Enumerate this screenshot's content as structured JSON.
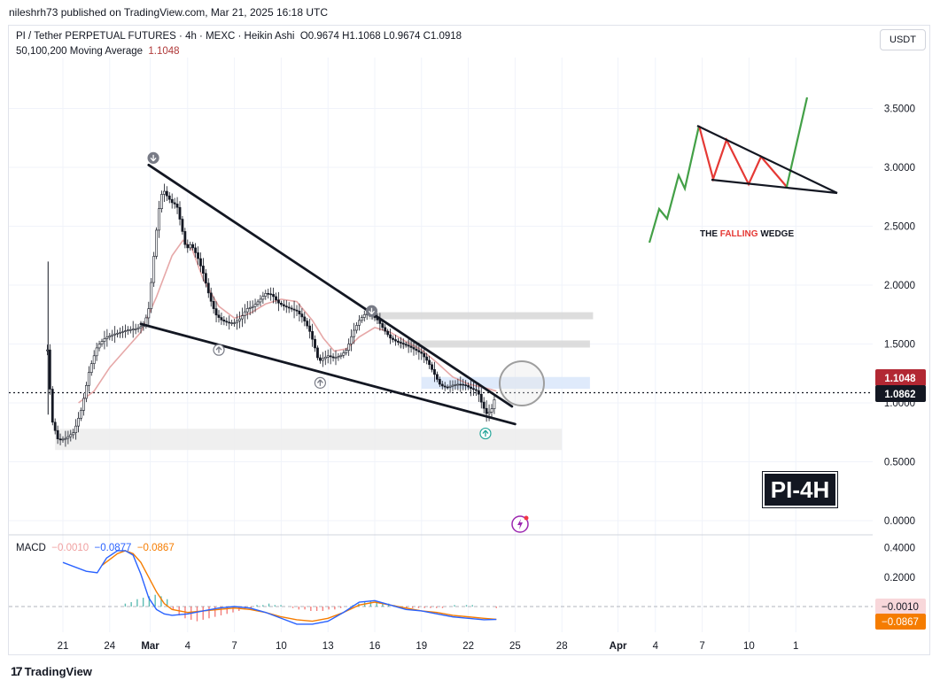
{
  "publisher": "nileshrh73 published on TradingView.com, Mar 21, 2025 16:18 UTC",
  "legend": {
    "symbol": "PI / Tether PERPETUAL FUTURES · 4h · MEXC · Heikin Ashi",
    "ohlc": "O0.9674  H1.1068  L0.9674  C1.0918",
    "ma_label": "50,100,200 Moving Average",
    "ma_value": "1.1048"
  },
  "macd_legend": {
    "label": "MACD",
    "hist": "−0.0010",
    "macd": "−0.0877",
    "signal": "−0.0867"
  },
  "currency": "USDT",
  "brand": "TradingView",
  "badge": "PI-4H",
  "inset_label": {
    "pre": "THE ",
    "hl": "FALLING",
    "post": " WEDGE"
  },
  "colors": {
    "up": "#131722",
    "ma": "#e6a8a8",
    "macd": "#2962ff",
    "signal": "#f57c00",
    "hist_up": "#26a69a",
    "hist_down": "#ef5350",
    "price_badge": "#131722",
    "ma_badge": "#b22833"
  },
  "chart_data": [
    {
      "type": "candlestick",
      "ohlc": "O0.9674 H1.1068 L0.9674 C1.0918",
      "x_ticks": [
        "21",
        "24",
        "Mar",
        "4",
        "7",
        "10",
        "13",
        "16",
        "19",
        "22",
        "25",
        "28",
        "Apr",
        "4",
        "7",
        "10",
        "1"
      ],
      "y_ticks": [
        "3.5000",
        "3.0000",
        "2.5000",
        "2.0000",
        "1.5000",
        "1.0000",
        "0.5000",
        "0.0000"
      ],
      "ylim": [
        0.0,
        4.0
      ],
      "current_price": "1.0862",
      "ma_value": "1.1048",
      "price_path": [
        [
          20.0,
          1.45
        ],
        [
          20.3,
          0.85
        ],
        [
          20.7,
          0.68
        ],
        [
          21.2,
          0.7
        ],
        [
          21.7,
          0.75
        ],
        [
          22.2,
          0.95
        ],
        [
          22.7,
          1.28
        ],
        [
          23.2,
          1.48
        ],
        [
          23.7,
          1.55
        ],
        [
          24.2,
          1.58
        ],
        [
          24.7,
          1.6
        ],
        [
          25.2,
          1.62
        ],
        [
          25.7,
          1.63
        ],
        [
          26.2,
          1.66
        ],
        [
          26.5,
          1.8
        ],
        [
          26.8,
          2.2
        ],
        [
          27.1,
          2.6
        ],
        [
          27.4,
          2.82
        ],
        [
          27.7,
          2.75
        ],
        [
          28.0,
          2.7
        ],
        [
          28.3,
          2.68
        ],
        [
          28.6,
          2.5
        ],
        [
          28.9,
          2.3
        ],
        [
          29.2,
          2.35
        ],
        [
          29.6,
          2.25
        ],
        [
          30.0,
          2.1
        ],
        [
          30.4,
          1.9
        ],
        [
          30.8,
          1.75
        ],
        [
          31.2,
          1.7
        ],
        [
          31.6,
          1.68
        ],
        [
          32.0,
          1.68
        ],
        [
          32.4,
          1.72
        ],
        [
          32.8,
          1.8
        ],
        [
          33.2,
          1.82
        ],
        [
          33.6,
          1.87
        ],
        [
          34.0,
          1.93
        ],
        [
          34.4,
          1.92
        ],
        [
          34.8,
          1.85
        ],
        [
          35.2,
          1.82
        ],
        [
          35.6,
          1.8
        ],
        [
          36.0,
          1.78
        ],
        [
          36.4,
          1.72
        ],
        [
          36.8,
          1.62
        ],
        [
          37.1,
          1.5
        ],
        [
          37.4,
          1.35
        ],
        [
          37.7,
          1.38
        ],
        [
          38.0,
          1.4
        ],
        [
          38.4,
          1.38
        ],
        [
          38.8,
          1.4
        ],
        [
          39.2,
          1.45
        ],
        [
          39.6,
          1.6
        ],
        [
          40.0,
          1.7
        ],
        [
          40.4,
          1.76
        ],
        [
          40.8,
          1.75
        ],
        [
          41.2,
          1.7
        ],
        [
          41.6,
          1.62
        ],
        [
          42.0,
          1.55
        ],
        [
          42.4,
          1.52
        ],
        [
          42.8,
          1.5
        ],
        [
          43.2,
          1.48
        ],
        [
          43.6,
          1.45
        ],
        [
          44.0,
          1.42
        ],
        [
          44.4,
          1.35
        ],
        [
          44.8,
          1.25
        ],
        [
          45.2,
          1.15
        ],
        [
          45.6,
          1.13
        ],
        [
          46.0,
          1.15
        ],
        [
          46.4,
          1.16
        ],
        [
          46.8,
          1.15
        ],
        [
          47.2,
          1.12
        ],
        [
          47.6,
          1.1
        ],
        [
          47.9,
          0.98
        ],
        [
          48.2,
          0.9
        ],
        [
          48.5,
          0.95
        ],
        [
          48.8,
          1.09
        ]
      ],
      "ma_path": [
        [
          22.0,
          1.0
        ],
        [
          23.0,
          1.1
        ],
        [
          24.0,
          1.3
        ],
        [
          25.0,
          1.45
        ],
        [
          26.0,
          1.6
        ],
        [
          27.0,
          1.9
        ],
        [
          28.0,
          2.25
        ],
        [
          28.7,
          2.38
        ],
        [
          29.3,
          2.3
        ],
        [
          30.0,
          2.05
        ],
        [
          31.0,
          1.82
        ],
        [
          32.0,
          1.72
        ],
        [
          33.0,
          1.76
        ],
        [
          34.0,
          1.84
        ],
        [
          35.0,
          1.88
        ],
        [
          36.0,
          1.86
        ],
        [
          37.0,
          1.7
        ],
        [
          37.7,
          1.55
        ],
        [
          38.4,
          1.44
        ],
        [
          39.2,
          1.46
        ],
        [
          40.0,
          1.56
        ],
        [
          41.0,
          1.64
        ],
        [
          42.0,
          1.6
        ],
        [
          43.0,
          1.52
        ],
        [
          44.0,
          1.45
        ],
        [
          45.0,
          1.34
        ],
        [
          46.0,
          1.22
        ],
        [
          47.0,
          1.16
        ],
        [
          48.0,
          1.13
        ],
        [
          48.8,
          1.1
        ]
      ],
      "trendlines": [
        {
          "name": "wedge-upper",
          "from": [
            26.5,
            3.02
          ],
          "to": [
            49.8,
            0.97
          ]
        },
        {
          "name": "wedge-lower",
          "from": [
            26.0,
            1.67
          ],
          "to": [
            50.0,
            0.82
          ]
        }
      ],
      "zones": [
        {
          "name": "zone-1",
          "x": [
            40.6,
            55.0
          ],
          "y": [
            1.71,
            1.77
          ],
          "color": "#d9d9d9"
        },
        {
          "name": "zone-2",
          "x": [
            42.5,
            54.8
          ],
          "y": [
            1.47,
            1.53
          ],
          "color": "#d9d9d9"
        },
        {
          "name": "zone-3",
          "x": [
            44.0,
            54.8
          ],
          "y": [
            1.12,
            1.22
          ],
          "color": "#dbe8fb"
        },
        {
          "name": "zone-4",
          "x": [
            20.5,
            53.0
          ],
          "y": [
            0.6,
            0.78
          ],
          "color": "#ededed"
        }
      ],
      "markers": [
        {
          "name": "down-marker",
          "x": 26.8,
          "y": 3.08,
          "dir": "down"
        },
        {
          "name": "up-marker",
          "x": 31.0,
          "y": 1.45,
          "dir": "up"
        },
        {
          "name": "up-marker",
          "x": 37.5,
          "y": 1.17,
          "dir": "up"
        },
        {
          "name": "down-marker",
          "x": 40.8,
          "y": 1.78,
          "dir": "down"
        },
        {
          "name": "up-marker",
          "x": 48.1,
          "y": 0.74,
          "dir": "up"
        }
      ]
    },
    {
      "type": "line",
      "ylim": [
        -0.15,
        0.45
      ],
      "y_ticks": [
        "0.4000",
        "0.2000"
      ],
      "current_hist": "−0.0010",
      "current_signal": "−0.0867",
      "macd_line": [
        [
          21.0,
          0.3
        ],
        [
          22.5,
          0.24
        ],
        [
          23.2,
          0.23
        ],
        [
          23.8,
          0.33
        ],
        [
          24.5,
          0.38
        ],
        [
          25.0,
          0.38
        ],
        [
          25.5,
          0.35
        ],
        [
          26.0,
          0.22
        ],
        [
          26.5,
          0.06
        ],
        [
          27.0,
          -0.02
        ],
        [
          27.5,
          -0.05
        ],
        [
          28.0,
          -0.06
        ],
        [
          29.0,
          -0.05
        ],
        [
          30.0,
          -0.03
        ],
        [
          31.0,
          -0.01
        ],
        [
          32.0,
          0.0
        ],
        [
          33.0,
          -0.01
        ],
        [
          34.0,
          -0.04
        ],
        [
          35.0,
          -0.08
        ],
        [
          36.0,
          -0.12
        ],
        [
          37.0,
          -0.12
        ],
        [
          38.0,
          -0.1
        ],
        [
          39.0,
          -0.04
        ],
        [
          40.0,
          0.03
        ],
        [
          41.0,
          0.04
        ],
        [
          42.0,
          0.01
        ],
        [
          43.0,
          -0.02
        ],
        [
          44.0,
          -0.03
        ],
        [
          45.0,
          -0.05
        ],
        [
          46.0,
          -0.07
        ],
        [
          47.0,
          -0.08
        ],
        [
          48.0,
          -0.09
        ],
        [
          48.8,
          -0.088
        ]
      ],
      "signal_line": [
        [
          23.5,
          0.28
        ],
        [
          24.5,
          0.36
        ],
        [
          25.0,
          0.38
        ],
        [
          25.5,
          0.36
        ],
        [
          26.0,
          0.3
        ],
        [
          26.5,
          0.2
        ],
        [
          27.0,
          0.1
        ],
        [
          27.5,
          0.02
        ],
        [
          28.0,
          -0.02
        ],
        [
          29.0,
          -0.04
        ],
        [
          30.0,
          -0.03
        ],
        [
          31.0,
          -0.02
        ],
        [
          32.0,
          -0.01
        ],
        [
          33.0,
          -0.02
        ],
        [
          34.0,
          -0.04
        ],
        [
          35.0,
          -0.07
        ],
        [
          36.0,
          -0.09
        ],
        [
          37.0,
          -0.1
        ],
        [
          38.0,
          -0.08
        ],
        [
          39.0,
          -0.04
        ],
        [
          40.0,
          0.01
        ],
        [
          41.0,
          0.03
        ],
        [
          42.0,
          0.01
        ],
        [
          43.0,
          -0.01
        ],
        [
          44.0,
          -0.03
        ],
        [
          45.0,
          -0.04
        ],
        [
          46.0,
          -0.06
        ],
        [
          47.0,
          -0.07
        ],
        [
          48.0,
          -0.08
        ],
        [
          48.8,
          -0.087
        ]
      ],
      "histogram": [
        0.02,
        0.03,
        0.05,
        0.06,
        0.07,
        0.08,
        0.07,
        0.05,
        -0.02,
        -0.06,
        -0.08,
        -0.09,
        -0.1,
        -0.09,
        -0.08,
        -0.07,
        -0.06,
        -0.05,
        -0.04,
        -0.03,
        -0.02,
        -0.01,
        0.01,
        0.01,
        0.02,
        0.01,
        0.01,
        0.0,
        -0.01,
        -0.02,
        -0.02,
        -0.03,
        -0.03,
        -0.03,
        -0.02,
        -0.02,
        -0.01,
        0.0,
        0.01,
        0.02,
        0.03,
        0.04,
        0.03,
        0.02,
        0.02,
        0.01,
        0.0,
        -0.01,
        -0.01,
        -0.01,
        -0.01,
        -0.01,
        -0.01,
        -0.01,
        0.0,
        0.01,
        0.0,
        0.01,
        0.01,
        0.0,
        0.0,
        0.0,
        -0.01
      ],
      "hist_x": [
        25.0,
        48.8
      ]
    }
  ]
}
